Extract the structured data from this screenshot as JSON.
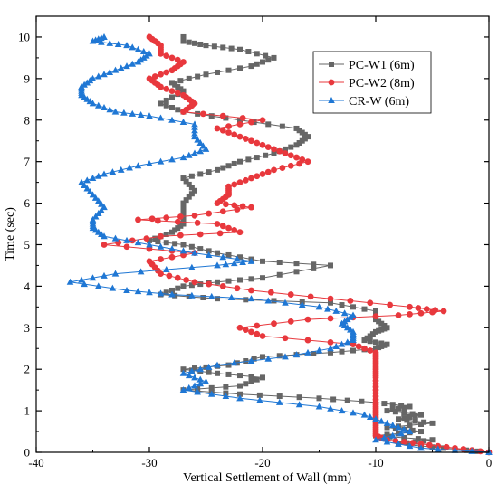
{
  "chart_data": {
    "type": "line",
    "title": "",
    "xlabel": "Vertical Settlement of Wall (mm)",
    "ylabel": "Time (sec)",
    "xlim": [
      -40,
      0
    ],
    "ylim": [
      0,
      10.5
    ],
    "x_ticks": [
      "-40",
      "-30",
      "-20",
      "-10",
      "0"
    ],
    "y_ticks": [
      "0",
      "1",
      "2",
      "3",
      "4",
      "5",
      "6",
      "7",
      "8",
      "9",
      "10"
    ],
    "grid": false,
    "legend_position": "top-right",
    "series": [
      {
        "name": "PC-W1 (6m)",
        "color": "#666666",
        "marker": "square",
        "points": [
          [
            0,
            0
          ],
          [
            -4,
            0.1
          ],
          [
            -8,
            0.2
          ],
          [
            -5,
            0.3
          ],
          [
            -10,
            0.4
          ],
          [
            -6,
            0.5
          ],
          [
            -9,
            0.6
          ],
          [
            -5,
            0.7
          ],
          [
            -8,
            0.8
          ],
          [
            -6,
            0.9
          ],
          [
            -9,
            1.0
          ],
          [
            -7,
            1.1
          ],
          [
            -10,
            1.2
          ],
          [
            -15,
            1.3
          ],
          [
            -22,
            1.4
          ],
          [
            -27,
            1.5
          ],
          [
            -22,
            1.6
          ],
          [
            -20,
            1.8
          ],
          [
            -24,
            1.9
          ],
          [
            -27,
            2.0
          ],
          [
            -23,
            2.1
          ],
          [
            -20,
            2.3
          ],
          [
            -14,
            2.4
          ],
          [
            -10,
            2.5
          ],
          [
            -9,
            2.6
          ],
          [
            -11,
            2.7
          ],
          [
            -10,
            2.9
          ],
          [
            -9,
            3.0
          ],
          [
            -10,
            3.2
          ],
          [
            -10,
            3.4
          ],
          [
            -14,
            3.6
          ],
          [
            -24,
            3.7
          ],
          [
            -29,
            3.8
          ],
          [
            -27,
            4.0
          ],
          [
            -24,
            4.1
          ],
          [
            -20,
            4.2
          ],
          [
            -14,
            4.5
          ],
          [
            -20,
            4.6
          ],
          [
            -24,
            4.8
          ],
          [
            -27,
            5.0
          ],
          [
            -30,
            5.1
          ],
          [
            -28,
            5.3
          ],
          [
            -27,
            5.5
          ],
          [
            -27,
            5.8
          ],
          [
            -27,
            6.0
          ],
          [
            -26,
            6.3
          ],
          [
            -27,
            6.6
          ],
          [
            -24,
            6.8
          ],
          [
            -22,
            7.0
          ],
          [
            -19,
            7.2
          ],
          [
            -17,
            7.4
          ],
          [
            -16,
            7.6
          ],
          [
            -17,
            7.8
          ],
          [
            -22,
            8.0
          ],
          [
            -27,
            8.2
          ],
          [
            -29,
            8.4
          ],
          [
            -27,
            8.7
          ],
          [
            -28,
            8.9
          ],
          [
            -25,
            9.1
          ],
          [
            -21,
            9.3
          ],
          [
            -19,
            9.5
          ],
          [
            -22,
            9.7
          ],
          [
            -25,
            9.8
          ],
          [
            -27,
            9.9
          ],
          [
            -27,
            10.0
          ]
        ]
      },
      {
        "name": "PC-W2 (8m)",
        "color": "#e8383d",
        "marker": "circle",
        "points": [
          [
            0,
            0
          ],
          [
            -3,
            0.1
          ],
          [
            -6,
            0.2
          ],
          [
            -9,
            0.3
          ],
          [
            -10,
            0.4
          ],
          [
            -10,
            0.6
          ],
          [
            -10,
            0.8
          ],
          [
            -10,
            1.0
          ],
          [
            -10,
            1.2
          ],
          [
            -10,
            1.5
          ],
          [
            -10,
            1.8
          ],
          [
            -10,
            2.0
          ],
          [
            -10,
            2.2
          ],
          [
            -10,
            2.4
          ],
          [
            -12,
            2.6
          ],
          [
            -20,
            2.8
          ],
          [
            -22,
            3.0
          ],
          [
            -16,
            3.2
          ],
          [
            -8,
            3.3
          ],
          [
            -4,
            3.4
          ],
          [
            -7,
            3.5
          ],
          [
            -14,
            3.7
          ],
          [
            -21,
            3.9
          ],
          [
            -26,
            4.1
          ],
          [
            -29,
            4.3
          ],
          [
            -30,
            4.6
          ],
          [
            -26,
            4.8
          ],
          [
            -34,
            5.0
          ],
          [
            -29,
            5.2
          ],
          [
            -22,
            5.3
          ],
          [
            -24,
            5.5
          ],
          [
            -31,
            5.6
          ],
          [
            -26,
            5.7
          ],
          [
            -21,
            5.9
          ],
          [
            -24,
            6.0
          ],
          [
            -23,
            6.2
          ],
          [
            -23,
            6.4
          ],
          [
            -21,
            6.6
          ],
          [
            -19,
            6.8
          ],
          [
            -16,
            7.0
          ],
          [
            -18,
            7.2
          ],
          [
            -20,
            7.4
          ],
          [
            -22,
            7.6
          ],
          [
            -24,
            7.8
          ],
          [
            -20,
            8.0
          ],
          [
            -27,
            8.2
          ],
          [
            -26,
            8.4
          ],
          [
            -27,
            8.6
          ],
          [
            -29,
            8.8
          ],
          [
            -30,
            9.0
          ],
          [
            -28,
            9.2
          ],
          [
            -27,
            9.4
          ],
          [
            -29,
            9.6
          ],
          [
            -29,
            9.8
          ],
          [
            -30,
            10.0
          ]
        ]
      },
      {
        "name": "CR-W (6m)",
        "color": "#1f77d4",
        "marker": "triangle",
        "points": [
          [
            0,
            0
          ],
          [
            -6,
            0.1
          ],
          [
            -10,
            0.3
          ],
          [
            -7,
            0.5
          ],
          [
            -9,
            0.7
          ],
          [
            -11,
            0.9
          ],
          [
            -15,
            1.1
          ],
          [
            -22,
            1.3
          ],
          [
            -27,
            1.5
          ],
          [
            -25,
            1.7
          ],
          [
            -27,
            1.9
          ],
          [
            -24,
            2.1
          ],
          [
            -18,
            2.3
          ],
          [
            -14,
            2.5
          ],
          [
            -12,
            2.7
          ],
          [
            -12,
            2.9
          ],
          [
            -13,
            3.1
          ],
          [
            -12,
            3.3
          ],
          [
            -15,
            3.5
          ],
          [
            -21,
            3.7
          ],
          [
            -28,
            3.8
          ],
          [
            -32,
            3.9
          ],
          [
            -37,
            4.1
          ],
          [
            -33,
            4.3
          ],
          [
            -24,
            4.5
          ],
          [
            -21,
            4.6
          ],
          [
            -26,
            4.8
          ],
          [
            -30,
            5.0
          ],
          [
            -34,
            5.2
          ],
          [
            -35,
            5.4
          ],
          [
            -35,
            5.6
          ],
          [
            -34,
            5.9
          ],
          [
            -35,
            6.2
          ],
          [
            -36,
            6.5
          ],
          [
            -34,
            6.7
          ],
          [
            -31,
            6.9
          ],
          [
            -27,
            7.1
          ],
          [
            -25,
            7.3
          ],
          [
            -26,
            7.6
          ],
          [
            -26,
            7.9
          ],
          [
            -30,
            8.1
          ],
          [
            -33,
            8.2
          ],
          [
            -35,
            8.4
          ],
          [
            -36,
            8.6
          ],
          [
            -36,
            8.8
          ],
          [
            -35,
            9.0
          ],
          [
            -33,
            9.2
          ],
          [
            -31,
            9.4
          ],
          [
            -30,
            9.6
          ],
          [
            -32,
            9.8
          ],
          [
            -35,
            9.9
          ],
          [
            -34,
            10.0
          ]
        ]
      }
    ]
  }
}
